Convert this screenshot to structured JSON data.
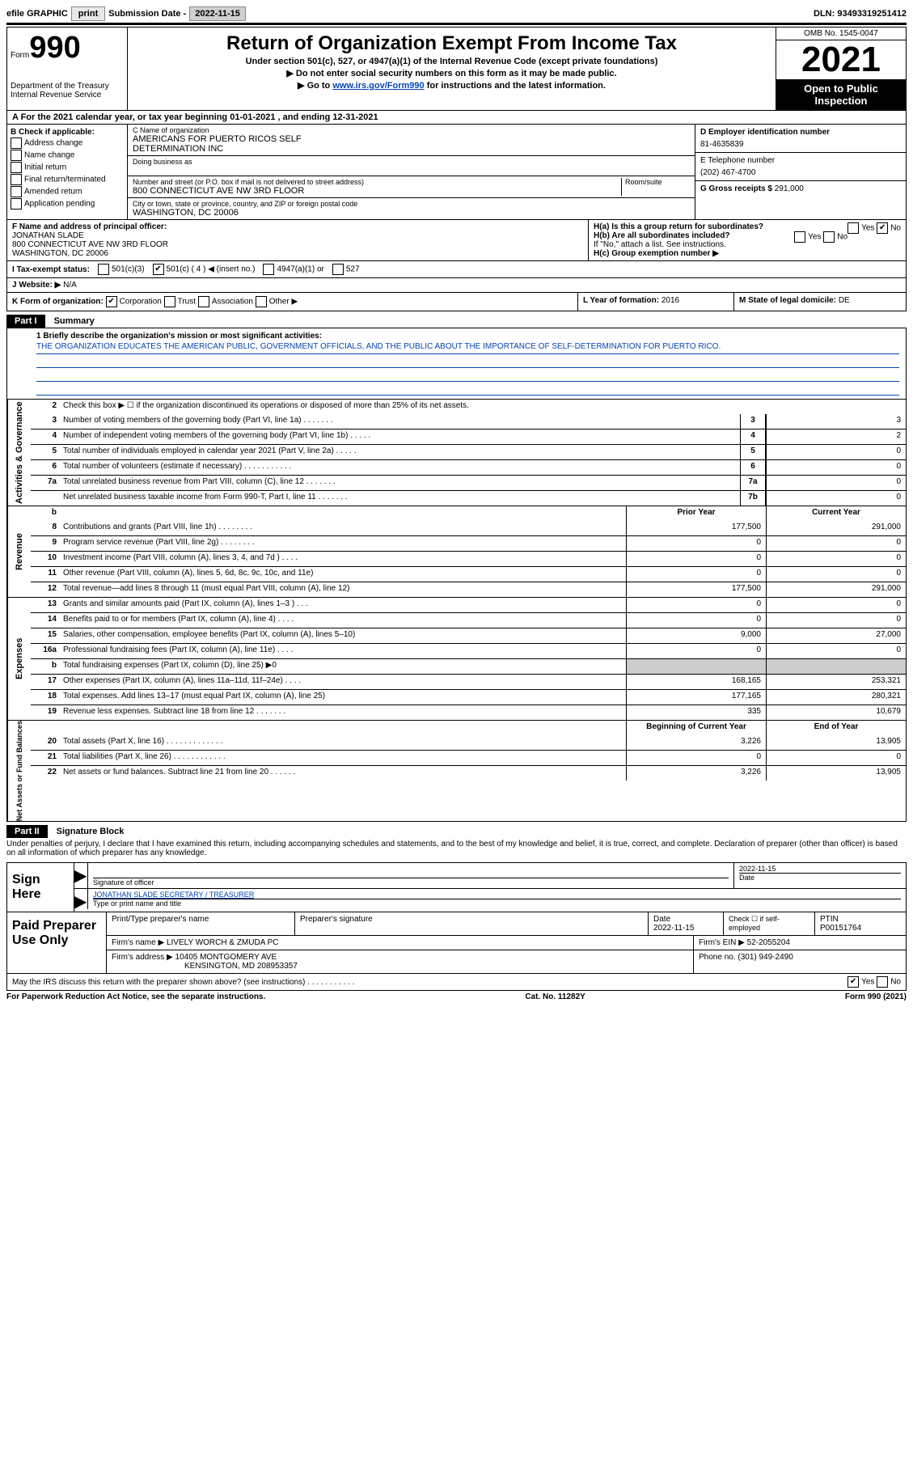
{
  "topbar": {
    "efile_label": "efile GRAPHIC",
    "print_btn": "print",
    "submission_label": "Submission Date -",
    "submission_date": "2022-11-15",
    "dln_label": "DLN:",
    "dln": "93493319251412"
  },
  "header": {
    "form_word": "Form",
    "form_num": "990",
    "dept": "Department of the Treasury",
    "irs": "Internal Revenue Service",
    "title": "Return of Organization Exempt From Income Tax",
    "sub1": "Under section 501(c), 527, or 4947(a)(1) of the Internal Revenue Code (except private foundations)",
    "sub2": "▶ Do not enter social security numbers on this form as it may be made public.",
    "sub3_pre": "▶ Go to ",
    "sub3_link": "www.irs.gov/Form990",
    "sub3_post": " for instructions and the latest information.",
    "omb": "OMB No. 1545-0047",
    "year": "2021",
    "open1": "Open to Public",
    "open2": "Inspection"
  },
  "row_a": {
    "pre": "A For the 2021 calendar year, or tax year beginning ",
    "begin": "01-01-2021",
    "mid": " , and ending ",
    "end": "12-31-2021"
  },
  "col_b": {
    "label": "B Check if applicable:",
    "addr_change": "Address change",
    "name_change": "Name change",
    "initial": "Initial return",
    "final": "Final return/terminated",
    "amended": "Amended return",
    "app_pending": "Application pending"
  },
  "col_c": {
    "name_label": "C Name of organization",
    "name1": "AMERICANS FOR PUERTO RICOS SELF",
    "name2": "DETERMINATION INC",
    "dba_label": "Doing business as",
    "street_label": "Number and street (or P.O. box if mail is not delivered to street address)",
    "room_label": "Room/suite",
    "street": "800 CONNECTICUT AVE NW 3RD FLOOR",
    "city_label": "City or town, state or province, country, and ZIP or foreign postal code",
    "city": "WASHINGTON, DC  20006"
  },
  "col_d": {
    "label": "D Employer identification number",
    "ein": "81-4635839",
    "e_label": "E Telephone number",
    "phone": "(202) 467-4700",
    "g_label": "G Gross receipts $",
    "gross": "291,000"
  },
  "col_f": {
    "label": "F Name and address of principal officer:",
    "name": "JONATHAN SLADE",
    "addr1": "800 CONNECTICUT AVE NW 3RD FLOOR",
    "addr2": "WASHINGTON, DC  20006"
  },
  "col_h": {
    "ha": "H(a)  Is this a group return for subordinates?",
    "hb": "H(b)  Are all subordinates included?",
    "hb_note": "If \"No,\" attach a list. See instructions.",
    "hc": "H(c)  Group exemption number ▶",
    "yes": "Yes",
    "no": "No"
  },
  "row_i": {
    "label": "I  Tax-exempt status:",
    "c3": "501(c)(3)",
    "c": "501(c) ( 4 ) ◀ (insert no.)",
    "a1": "4947(a)(1) or",
    "s527": "527"
  },
  "row_j": {
    "label": "J  Website: ▶",
    "val": "N/A"
  },
  "row_k": {
    "label": "K Form of organization:",
    "corp": "Corporation",
    "trust": "Trust",
    "assoc": "Association",
    "other": "Other ▶",
    "l_label": "L Year of formation:",
    "l_val": "2016",
    "m_label": "M State of legal domicile:",
    "m_val": "DE"
  },
  "part1": {
    "hdr": "Part I",
    "title": "Summary",
    "line1_label": "1  Briefly describe the organization's mission or most significant activities:",
    "mission": "THE ORGANIZATION EDUCATES THE AMERICAN PUBLIC, GOVERNMENT OFFICIALS, AND THE PUBLIC ABOUT THE IMPORTANCE OF SELF-DETERMINATION FOR PUERTO RICO.",
    "side_ag": "Activities & Governance",
    "side_rev": "Revenue",
    "side_exp": "Expenses",
    "side_na": "Net Assets or Fund Balances",
    "line2": "Check this box ▶ ☐ if the organization discontinued its operations or disposed of more than 25% of its net assets.",
    "prior_hdr": "Prior Year",
    "current_hdr": "Current Year",
    "begin_hdr": "Beginning of Current Year",
    "end_hdr": "End of Year",
    "rows_top": [
      {
        "n": "3",
        "t": "Number of voting members of the governing body (Part VI, line 1a)   .    .    .    .    .    .    .",
        "box": "3",
        "v": "3"
      },
      {
        "n": "4",
        "t": "Number of independent voting members of the governing body (Part VI, line 1b)   .    .    .    .    .",
        "box": "4",
        "v": "2"
      },
      {
        "n": "5",
        "t": "Total number of individuals employed in calendar year 2021 (Part V, line 2a)   .    .    .    .    .",
        "box": "5",
        "v": "0"
      },
      {
        "n": "6",
        "t": "Total number of volunteers (estimate if necessary)   .    .    .    .    .    .    .    .    .    .    .",
        "box": "6",
        "v": "0"
      },
      {
        "n": "7a",
        "t": "Total unrelated business revenue from Part VIII, column (C), line 12   .    .    .    .    .    .    .",
        "box": "7a",
        "v": "0"
      },
      {
        "n": "",
        "t": "Net unrelated business taxable income from Form 990-T, Part I, line 11   .    .    .    .    .    .    .",
        "box": "7b",
        "v": "0"
      }
    ],
    "rows_rev": [
      {
        "n": "8",
        "t": "Contributions and grants (Part VIII, line 1h)   .    .    .    .    .    .    .    .",
        "p": "177,500",
        "c": "291,000"
      },
      {
        "n": "9",
        "t": "Program service revenue (Part VIII, line 2g)   .    .    .    .    .    .    .    .",
        "p": "0",
        "c": "0"
      },
      {
        "n": "10",
        "t": "Investment income (Part VIII, column (A), lines 3, 4, and 7d )   .    .    .    .",
        "p": "0",
        "c": "0"
      },
      {
        "n": "11",
        "t": "Other revenue (Part VIII, column (A), lines 5, 6d, 8c, 9c, 10c, and 11e)",
        "p": "0",
        "c": "0"
      },
      {
        "n": "12",
        "t": "Total revenue—add lines 8 through 11 (must equal Part VIII, column (A), line 12)",
        "p": "177,500",
        "c": "291,000"
      }
    ],
    "rows_exp": [
      {
        "n": "13",
        "t": "Grants and similar amounts paid (Part IX, column (A), lines 1–3 )   .    .    .",
        "p": "0",
        "c": "0"
      },
      {
        "n": "14",
        "t": "Benefits paid to or for members (Part IX, column (A), line 4)   .    .    .    .",
        "p": "0",
        "c": "0"
      },
      {
        "n": "15",
        "t": "Salaries, other compensation, employee benefits (Part IX, column (A), lines 5–10)",
        "p": "9,000",
        "c": "27,000"
      },
      {
        "n": "16a",
        "t": "Professional fundraising fees (Part IX, column (A), line 11e)   .    .    .    .",
        "p": "0",
        "c": "0"
      },
      {
        "n": "b",
        "t": "Total fundraising expenses (Part IX, column (D), line 25) ▶0",
        "p": "",
        "c": "",
        "shade": true
      },
      {
        "n": "17",
        "t": "Other expenses (Part IX, column (A), lines 11a–11d, 11f–24e)   .    .    .    .",
        "p": "168,165",
        "c": "253,321"
      },
      {
        "n": "18",
        "t": "Total expenses. Add lines 13–17 (must equal Part IX, column (A), line 25)",
        "p": "177,165",
        "c": "280,321"
      },
      {
        "n": "19",
        "t": "Revenue less expenses. Subtract line 18 from line 12   .    .    .    .    .    .    .",
        "p": "335",
        "c": "10,679"
      }
    ],
    "rows_na": [
      {
        "n": "20",
        "t": "Total assets (Part X, line 16)   .    .    .    .    .    .    .    .    .    .    .    .    .",
        "p": "3,226",
        "c": "13,905"
      },
      {
        "n": "21",
        "t": "Total liabilities (Part X, line 26)   .    .    .    .    .    .    .    .    .    .    .    .",
        "p": "0",
        "c": "0"
      },
      {
        "n": "22",
        "t": "Net assets or fund balances. Subtract line 21 from line 20   .    .    .    .    .    .",
        "p": "3,226",
        "c": "13,905"
      }
    ]
  },
  "part2": {
    "hdr": "Part II",
    "title": "Signature Block",
    "decl": "Under penalties of perjury, I declare that I have examined this return, including accompanying schedules and statements, and to the best of my knowledge and belief, it is true, correct, and complete. Declaration of preparer (other than officer) is based on all information of which preparer has any knowledge.",
    "sign_here": "Sign Here",
    "sig_officer": "Signature of officer",
    "sig_date": "2022-11-15",
    "date_lbl": "Date",
    "officer_name": "JONATHAN SLADE  SECRETARY / TREASURER",
    "type_name": "Type or print name and title",
    "paid": "Paid Preparer Use Only",
    "prep_name_lbl": "Print/Type preparer's name",
    "prep_sig_lbl": "Preparer's signature",
    "prep_date_lbl": "Date",
    "prep_date": "2022-11-15",
    "check_lbl": "Check ☐ if self-employed",
    "ptin_lbl": "PTIN",
    "ptin": "P00151764",
    "firm_name_lbl": "Firm's name    ▶",
    "firm_name": "LIVELY WORCH & ZMUDA PC",
    "firm_ein_lbl": "Firm's EIN ▶",
    "firm_ein": "52-2055204",
    "firm_addr_lbl": "Firm's address ▶",
    "firm_addr1": "10405 MONTGOMERY AVE",
    "firm_addr2": "KENSINGTON, MD  208953357",
    "phone_lbl": "Phone no.",
    "phone": "(301) 949-2490",
    "discuss": "May the IRS discuss this return with the preparer shown above? (see instructions)   .    .    .    .    .    .    .    .    .    .    .",
    "yes": "Yes",
    "no": "No"
  },
  "footer": {
    "pra": "For Paperwork Reduction Act Notice, see the separate instructions.",
    "cat": "Cat. No. 11282Y",
    "form": "Form 990 (2021)"
  }
}
